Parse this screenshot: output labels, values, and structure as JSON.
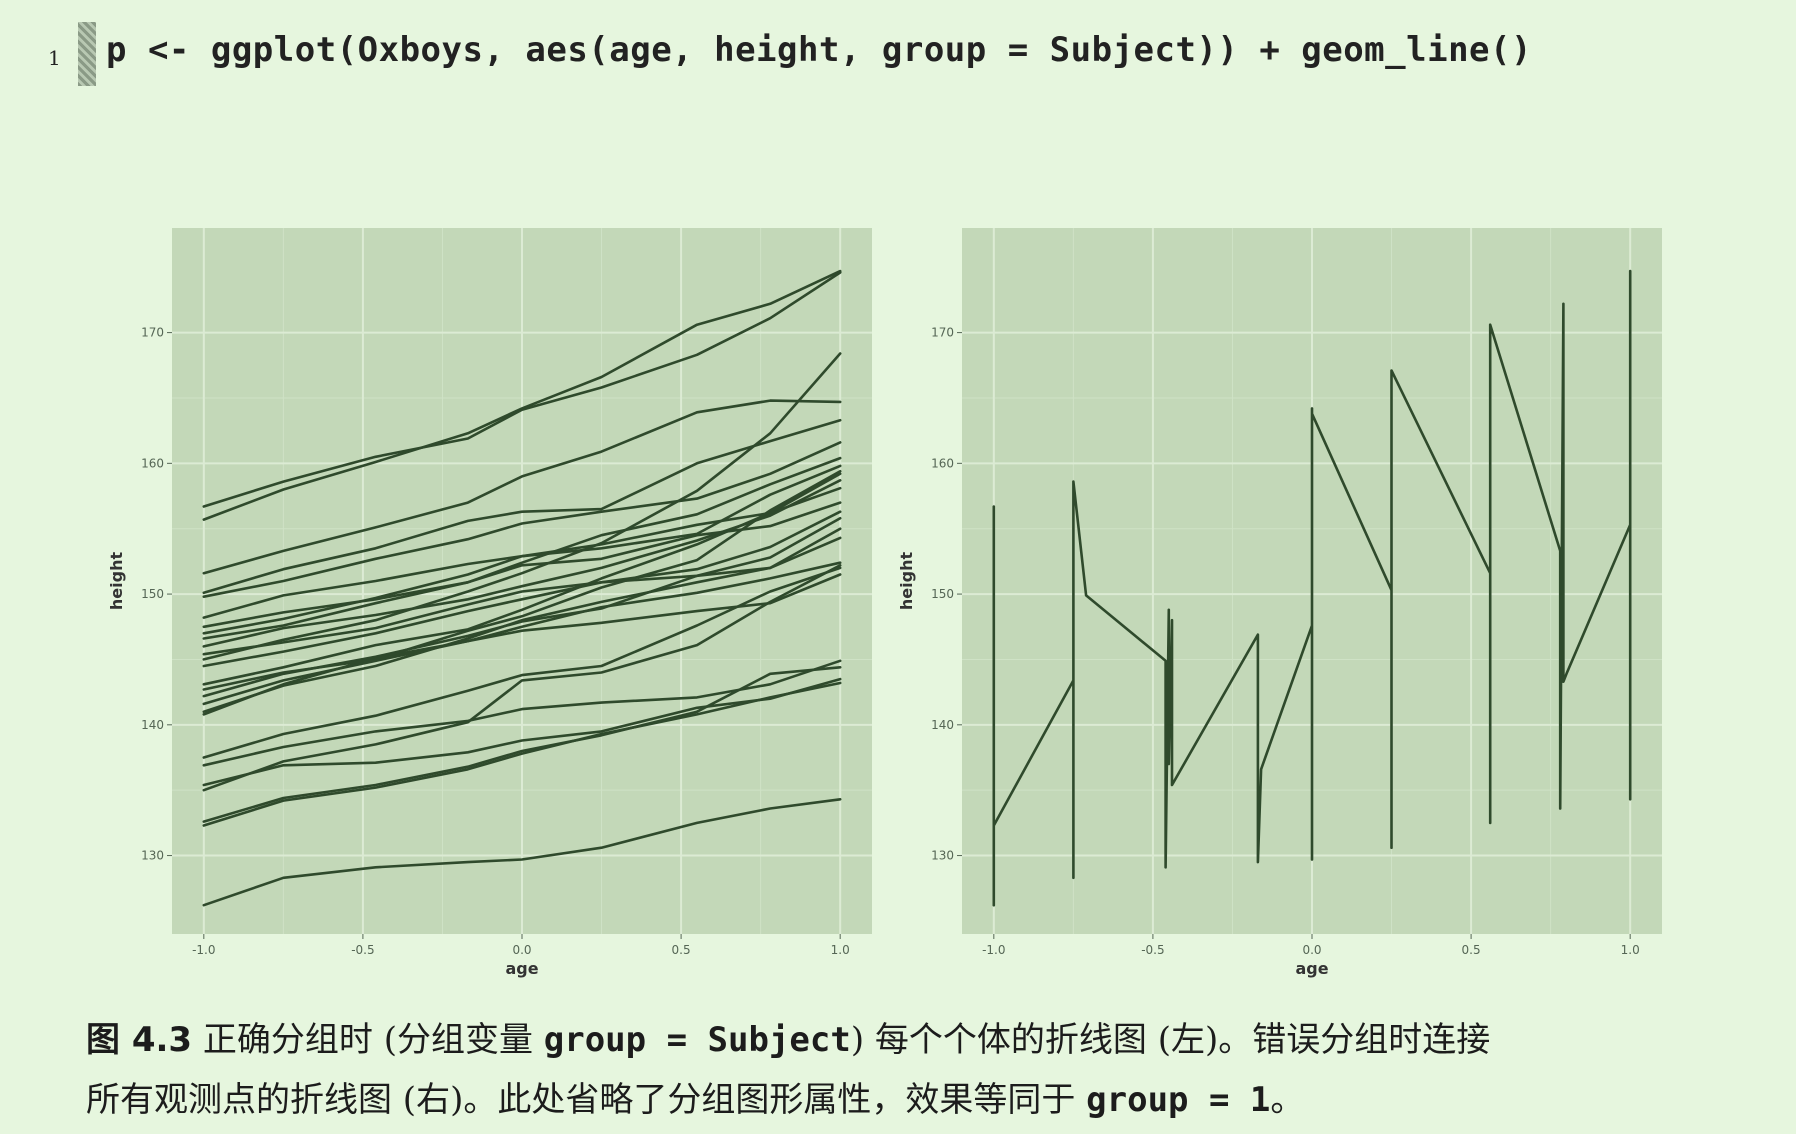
{
  "code": {
    "line_number": "1",
    "text": "p <- ggplot(Oxboys, aes(age, height, group = Subject)) + geom_line()"
  },
  "colors": {
    "page_bg": "#e6f6de",
    "panel_bg": "#c3d8b8",
    "grid_major": "#dcebd4",
    "grid_minor": "#cfe2c6",
    "line": "#2f4a2c",
    "tick_text": "#556655"
  },
  "chart_data": [
    {
      "type": "line",
      "title": "",
      "xlabel": "age",
      "ylabel": "height",
      "xlim": [
        -1.1,
        1.1
      ],
      "ylim": [
        124,
        178
      ],
      "xticks": [
        -1.0,
        -0.5,
        0.0,
        0.5,
        1.0
      ],
      "xtick_labels": [
        "-1.0",
        "-0.5",
        "0.0",
        "0.5",
        "1.0"
      ],
      "yticks": [
        130,
        140,
        150,
        160,
        170
      ],
      "ytick_labels": [
        "130",
        "140",
        "150",
        "160",
        "170"
      ],
      "grid": true,
      "x": [
        -1.0,
        -0.75,
        -0.46,
        -0.17,
        0.0,
        0.25,
        0.55,
        0.78,
        1.0
      ],
      "series": [
        {
          "values": [
            126.2,
            128.3,
            129.1,
            129.5,
            129.7,
            130.6,
            132.5,
            133.6,
            134.3
          ]
        },
        {
          "values": [
            132.3,
            134.2,
            135.2,
            136.6,
            137.8,
            139.3,
            140.8,
            142.1,
            143.2
          ]
        },
        {
          "values": [
            132.6,
            134.4,
            135.4,
            136.8,
            138.0,
            139.2,
            141.0,
            143.9,
            144.4
          ]
        },
        {
          "values": [
            135.0,
            137.2,
            138.5,
            140.2,
            143.4,
            144.0,
            146.1,
            149.4,
            152.2
          ]
        },
        {
          "values": [
            135.4,
            136.9,
            137.1,
            137.9,
            138.8,
            139.5,
            141.3,
            142.0,
            143.5
          ]
        },
        {
          "values": [
            136.9,
            138.3,
            139.5,
            140.3,
            141.2,
            141.7,
            142.1,
            143.1,
            144.9
          ]
        },
        {
          "values": [
            137.5,
            139.3,
            140.7,
            142.6,
            143.8,
            144.5,
            147.6,
            150.2,
            152.0
          ]
        },
        {
          "values": [
            140.8,
            143.1,
            145.1,
            146.4,
            147.2,
            147.8,
            148.7,
            149.3,
            151.5
          ]
        },
        {
          "values": [
            141.6,
            143.4,
            144.9,
            146.4,
            147.5,
            149.0,
            150.1,
            151.2,
            152.4
          ]
        },
        {
          "values": [
            142.2,
            143.9,
            145.2,
            146.8,
            147.9,
            148.9,
            151.4,
            152.8,
            155.8
          ]
        },
        {
          "values": [
            142.7,
            144.0,
            145.0,
            147.2,
            148.3,
            150.5,
            152.6,
            156.4,
            159.4
          ]
        },
        {
          "values": [
            143.1,
            144.4,
            146.1,
            147.3,
            148.8,
            151.2,
            153.8,
            156.2,
            158.1
          ]
        },
        {
          "values": [
            144.5,
            145.6,
            147.0,
            148.7,
            149.6,
            150.9,
            151.4,
            152.0,
            154.3
          ]
        },
        {
          "values": [
            145.4,
            146.3,
            147.4,
            149.2,
            150.2,
            150.9,
            151.9,
            153.6,
            156.3
          ]
        },
        {
          "values": [
            146.0,
            147.4,
            148.4,
            149.6,
            150.6,
            152.0,
            154.1,
            156.0,
            158.7
          ]
        },
        {
          "values": [
            146.6,
            147.6,
            149.3,
            150.9,
            152.2,
            152.7,
            154.5,
            155.2,
            157.0
          ]
        },
        {
          "values": [
            147.0,
            148.1,
            149.7,
            151.5,
            152.9,
            153.8,
            155.3,
            156.2,
            159.2
          ]
        },
        {
          "values": [
            147.5,
            148.6,
            149.6,
            150.9,
            152.4,
            154.5,
            156.1,
            158.4,
            160.4
          ]
        },
        {
          "values": [
            148.2,
            149.9,
            151.0,
            152.3,
            152.9,
            153.5,
            154.6,
            157.6,
            159.8
          ]
        },
        {
          "values": [
            149.8,
            151.0,
            152.7,
            154.2,
            155.4,
            156.3,
            157.3,
            159.2,
            161.6
          ]
        },
        {
          "values": [
            150.1,
            151.9,
            153.5,
            155.6,
            156.3,
            156.5,
            160.0,
            161.7,
            163.3
          ]
        },
        {
          "values": [
            151.6,
            153.3,
            155.1,
            157.0,
            159.0,
            160.9,
            163.9,
            164.8,
            164.7
          ]
        },
        {
          "values": [
            155.7,
            158.0,
            160.1,
            162.3,
            164.2,
            166.6,
            170.6,
            172.2,
            174.7
          ]
        },
        {
          "values": [
            156.7,
            158.6,
            160.5,
            161.9,
            164.1,
            165.8,
            168.3,
            171.1,
            174.6
          ]
        },
        {
          "values": [
            145.0,
            146.5,
            148.0,
            150.2,
            151.6,
            153.9,
            157.9,
            162.3,
            168.4
          ]
        },
        {
          "values": [
            141.0,
            143.0,
            144.5,
            146.6,
            148.0,
            149.4,
            150.9,
            152.0,
            155.0
          ]
        }
      ]
    },
    {
      "type": "line",
      "title": "",
      "xlabel": "age",
      "ylabel": "height",
      "xlim": [
        -1.1,
        1.1
      ],
      "ylim": [
        124,
        178
      ],
      "xticks": [
        -1.0,
        -0.5,
        0.0,
        0.5,
        1.0
      ],
      "xtick_labels": [
        "-1.0",
        "-0.5",
        "0.0",
        "0.5",
        "1.0"
      ],
      "yticks": [
        130,
        140,
        150,
        160,
        170
      ],
      "ytick_labels": [
        "130",
        "140",
        "150",
        "160",
        "170"
      ],
      "grid": true,
      "x": [
        -1.0,
        -1.0,
        -1.0,
        -0.75,
        -0.75,
        -0.75,
        -0.71,
        -0.46,
        -0.46,
        -0.45,
        -0.45,
        -0.44,
        -0.44,
        -0.17,
        -0.17,
        -0.16,
        0.0,
        0.0,
        0.0,
        0.0,
        0.25,
        0.25,
        0.25,
        0.56,
        0.56,
        0.56,
        0.78,
        0.78,
        0.79,
        0.79,
        0.8,
        1.0,
        1.0,
        1.0,
        1.0,
        1.0
      ],
      "values": [
        126.2,
        156.7,
        132.3,
        143.4,
        128.3,
        158.6,
        149.9,
        144.9,
        129.1,
        148.8,
        137.0,
        148.0,
        135.4,
        146.9,
        129.5,
        136.6,
        147.6,
        129.7,
        164.2,
        163.8,
        150.3,
        130.6,
        167.1,
        151.6,
        132.5,
        170.6,
        153.3,
        133.6,
        172.2,
        143.3,
        143.9,
        155.3,
        134.3,
        174.7,
        143.2,
        158.9
      ]
    }
  ],
  "caption": {
    "fig_label": "图 4.3",
    "line1_a": " 正确分组时 (分组变量 ",
    "line1_code": "group = Subject",
    "line1_b": ") 每个个体的折线图 (左)。错误分组时连接",
    "line2_a": "所有观测点的折线图 (右)。此处省略了分组图形属性，效果等同于 ",
    "line2_code": "group = 1",
    "line2_b": "。"
  }
}
